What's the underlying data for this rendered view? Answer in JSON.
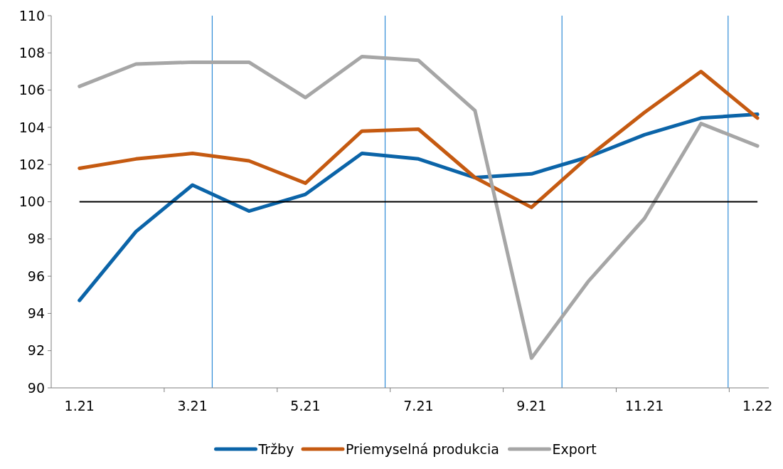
{
  "chart_data": {
    "type": "line",
    "categories": [
      "1.21",
      null,
      "3.21",
      null,
      "5.21",
      null,
      "7.21",
      null,
      "9.21",
      null,
      "11.21",
      null,
      "1.22"
    ],
    "ylim": [
      90,
      110
    ],
    "yticks": [
      90,
      92,
      94,
      96,
      98,
      100,
      102,
      104,
      106,
      108,
      110
    ],
    "series": [
      {
        "name": "Tržby",
        "color": "#0b64a8",
        "values": [
          94.7,
          98.4,
          100.9,
          99.5,
          100.4,
          102.6,
          102.3,
          101.3,
          101.5,
          102.4,
          103.6,
          104.5,
          104.7
        ]
      },
      {
        "name": "Priemyselná produkcia",
        "color": "#c55a11",
        "values": [
          101.8,
          102.3,
          102.6,
          102.2,
          101.0,
          103.8,
          103.9,
          101.3,
          99.7,
          102.4,
          104.8,
          107.0,
          104.5
        ]
      },
      {
        "name": "Export",
        "color": "#a6a6a6",
        "values": [
          106.2,
          107.4,
          107.5,
          107.5,
          105.6,
          107.8,
          107.6,
          104.9,
          91.6,
          95.7,
          99.1,
          104.2,
          103.0
        ]
      }
    ],
    "ref_lines": [
      {
        "axis": "y",
        "value": 100,
        "color": "#000000"
      }
    ],
    "grid": false,
    "legend": "bottom",
    "marker": "none",
    "line_style": "solid"
  }
}
